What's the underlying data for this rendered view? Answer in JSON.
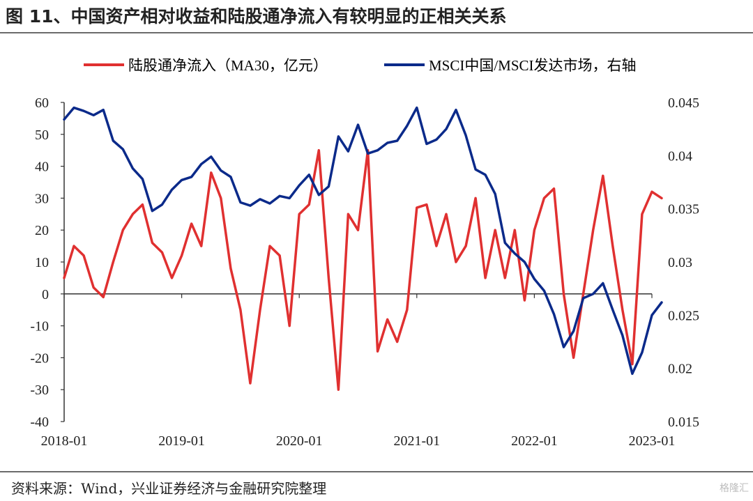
{
  "title": "图 11、中国资产相对收益和陆股通净流入有较明显的正相关关系",
  "source": "资料来源：Wind，兴业证券经济与金融研究院整理",
  "watermark": "格隆汇",
  "colors": {
    "left_series": "#e03030",
    "right_series": "#0b2a8a",
    "axis": "#333333"
  },
  "chart_data": {
    "type": "line",
    "x_ticks": [
      "2018-01",
      "2019-01",
      "2020-01",
      "2021-01",
      "2022-01",
      "2023-01"
    ],
    "x_range": [
      "2018-01",
      "2023-01"
    ],
    "y_left": {
      "ticks": [
        "60",
        "50",
        "40",
        "30",
        "20",
        "10",
        "0",
        "-10",
        "-20",
        "-30",
        "-40"
      ],
      "ylim": [
        -40,
        60
      ]
    },
    "y_right": {
      "ticks": [
        "0.045",
        "0.04",
        "0.035",
        "0.03",
        "0.025",
        "0.02",
        "0.015"
      ],
      "ylim": [
        0.015,
        0.045
      ]
    },
    "series": [
      {
        "name": "陆股通净流入（MA30，亿元）",
        "axis": "left",
        "points": [
          [
            "2018-01",
            5
          ],
          [
            "2018-02",
            15
          ],
          [
            "2018-03",
            12
          ],
          [
            "2018-04",
            2
          ],
          [
            "2018-05",
            -1
          ],
          [
            "2018-06",
            10
          ],
          [
            "2018-07",
            20
          ],
          [
            "2018-08",
            25
          ],
          [
            "2018-09",
            28
          ],
          [
            "2018-10",
            16
          ],
          [
            "2018-11",
            13
          ],
          [
            "2018-12",
            5
          ],
          [
            "2019-01",
            12
          ],
          [
            "2019-02",
            22
          ],
          [
            "2019-03",
            15
          ],
          [
            "2019-04",
            38
          ],
          [
            "2019-05",
            30
          ],
          [
            "2019-06",
            8
          ],
          [
            "2019-07",
            -5
          ],
          [
            "2019-08",
            -28
          ],
          [
            "2019-09",
            -5
          ],
          [
            "2019-10",
            15
          ],
          [
            "2019-11",
            12
          ],
          [
            "2019-12",
            -10
          ],
          [
            "2020-01",
            25
          ],
          [
            "2020-02",
            28
          ],
          [
            "2020-03",
            45
          ],
          [
            "2020-04",
            5
          ],
          [
            "2020-05",
            -30
          ],
          [
            "2020-06",
            25
          ],
          [
            "2020-07",
            20
          ],
          [
            "2020-08",
            45
          ],
          [
            "2020-09",
            -18
          ],
          [
            "2020-10",
            -8
          ],
          [
            "2020-11",
            -15
          ],
          [
            "2020-12",
            -5
          ],
          [
            "2021-01",
            27
          ],
          [
            "2021-02",
            28
          ],
          [
            "2021-03",
            15
          ],
          [
            "2021-04",
            25
          ],
          [
            "2021-05",
            10
          ],
          [
            "2021-06",
            15
          ],
          [
            "2021-07",
            30
          ],
          [
            "2021-08",
            5
          ],
          [
            "2021-09",
            20
          ],
          [
            "2021-10",
            5
          ],
          [
            "2021-11",
            20
          ],
          [
            "2021-12",
            -2
          ],
          [
            "2022-01",
            20
          ],
          [
            "2022-02",
            30
          ],
          [
            "2022-03",
            33
          ],
          [
            "2022-04",
            0
          ],
          [
            "2022-05",
            -20
          ],
          [
            "2022-06",
            0
          ],
          [
            "2022-07",
            20
          ],
          [
            "2022-08",
            37
          ],
          [
            "2022-09",
            15
          ],
          [
            "2022-10",
            -5
          ],
          [
            "2022-11",
            -22
          ],
          [
            "2022-12",
            25
          ],
          [
            "2023-01",
            32
          ],
          [
            "2023-02",
            30
          ]
        ]
      },
      {
        "name": "MSCI中国/MSCI发达市场，右轴",
        "axis": "right",
        "points": [
          [
            "2018-01",
            0.0434
          ],
          [
            "2018-02",
            0.0445
          ],
          [
            "2018-03",
            0.0442
          ],
          [
            "2018-04",
            0.0438
          ],
          [
            "2018-05",
            0.0443
          ],
          [
            "2018-06",
            0.0414
          ],
          [
            "2018-07",
            0.0406
          ],
          [
            "2018-08",
            0.0388
          ],
          [
            "2018-09",
            0.0378
          ],
          [
            "2018-10",
            0.0348
          ],
          [
            "2018-11",
            0.0354
          ],
          [
            "2018-12",
            0.0368
          ],
          [
            "2019-01",
            0.0377
          ],
          [
            "2019-02",
            0.038
          ],
          [
            "2019-03",
            0.0392
          ],
          [
            "2019-04",
            0.0399
          ],
          [
            "2019-05",
            0.0386
          ],
          [
            "2019-06",
            0.038
          ],
          [
            "2019-07",
            0.0356
          ],
          [
            "2019-08",
            0.0353
          ],
          [
            "2019-09",
            0.0359
          ],
          [
            "2019-10",
            0.0355
          ],
          [
            "2019-11",
            0.0362
          ],
          [
            "2019-12",
            0.036
          ],
          [
            "2020-01",
            0.0372
          ],
          [
            "2020-02",
            0.0382
          ],
          [
            "2020-03",
            0.0363
          ],
          [
            "2020-04",
            0.0371
          ],
          [
            "2020-05",
            0.0418
          ],
          [
            "2020-06",
            0.0404
          ],
          [
            "2020-07",
            0.0429
          ],
          [
            "2020-08",
            0.0402
          ],
          [
            "2020-09",
            0.0405
          ],
          [
            "2020-10",
            0.0412
          ],
          [
            "2020-11",
            0.0414
          ],
          [
            "2020-12",
            0.0428
          ],
          [
            "2021-01",
            0.0445
          ],
          [
            "2021-02",
            0.0411
          ],
          [
            "2021-03",
            0.0415
          ],
          [
            "2021-04",
            0.0425
          ],
          [
            "2021-05",
            0.0443
          ],
          [
            "2021-06",
            0.0419
          ],
          [
            "2021-07",
            0.0387
          ],
          [
            "2021-08",
            0.0382
          ],
          [
            "2021-09",
            0.0364
          ],
          [
            "2021-10",
            0.0318
          ],
          [
            "2021-11",
            0.0308
          ],
          [
            "2021-12",
            0.03
          ],
          [
            "2022-01",
            0.0284
          ],
          [
            "2022-02",
            0.0273
          ],
          [
            "2022-03",
            0.0251
          ],
          [
            "2022-04",
            0.022
          ],
          [
            "2022-05",
            0.0235
          ],
          [
            "2022-06",
            0.0266
          ],
          [
            "2022-07",
            0.027
          ],
          [
            "2022-08",
            0.028
          ],
          [
            "2022-09",
            0.0255
          ],
          [
            "2022-10",
            0.0231
          ],
          [
            "2022-11",
            0.0195
          ],
          [
            "2022-12",
            0.0215
          ],
          [
            "2023-01",
            0.025
          ],
          [
            "2023-02",
            0.0262
          ]
        ]
      }
    ]
  }
}
